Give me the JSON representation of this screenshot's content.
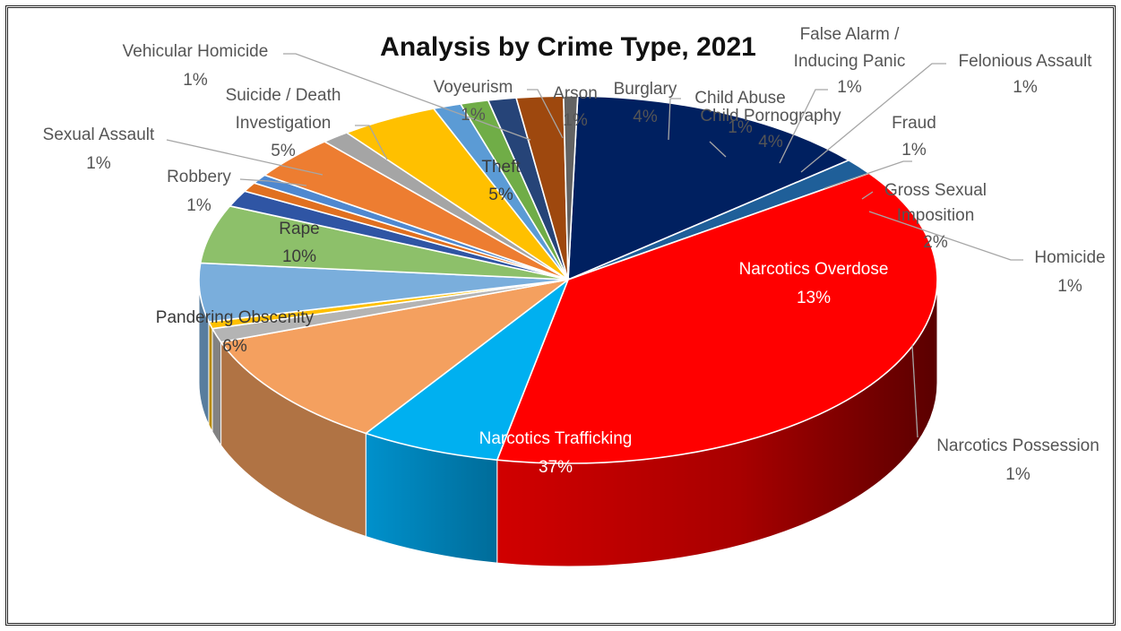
{
  "chart_data": {
    "type": "pie",
    "title": "Analysis by Crime Type, 2021",
    "three_d": true,
    "slices": [
      {
        "label": "Narcotics Overdose",
        "pct": "13%",
        "value": 13,
        "color": "#002060"
      },
      {
        "label": "Narcotics Possession",
        "pct": "1%",
        "value": 1.4,
        "color": "#1f5f99"
      },
      {
        "label": "Narcotics Trafficking",
        "pct": "37%",
        "value": 37,
        "color": "#ff0000"
      },
      {
        "label": "Pandering Obscenity",
        "pct": "6%",
        "value": 6,
        "color": "#00b0f0"
      },
      {
        "label": "Rape",
        "pct": "10%",
        "value": 10,
        "color": "#f4a05f"
      },
      {
        "label": "Robbery",
        "pct": "1%",
        "value": 1.2,
        "color": "#b4b4b4"
      },
      {
        "label": "Sexual Assault",
        "pct": "1%",
        "value": 0.6,
        "color": "#ffc000"
      },
      {
        "label": "Suicide / Death Investigation",
        "pct": "5%",
        "value": 5,
        "color": "#7aaedc"
      },
      {
        "label": "Theft",
        "pct": "5%",
        "value": 5,
        "color": "#8dc06a"
      },
      {
        "label": "Vehicular Homicide",
        "pct": "1%",
        "value": 1.4,
        "color": "#2f55a4"
      },
      {
        "label": "Voyeurism",
        "pct": "1%",
        "value": 0.8,
        "color": "#e07020"
      },
      {
        "label": "Arson",
        "pct": "1%",
        "value": 0.8,
        "color": "#4e88d0"
      },
      {
        "label": "Burglary",
        "pct": "4%",
        "value": 3.8,
        "color": "#ed7d31"
      },
      {
        "label": "Child Abuse",
        "pct": "1%",
        "value": 1.2,
        "color": "#a5a5a5"
      },
      {
        "label": "Child Pornography",
        "pct": "4%",
        "value": 4.2,
        "color": "#ffc000"
      },
      {
        "label": "False Alarm / Inducing Panic",
        "pct": "1%",
        "value": 1.2,
        "color": "#5b9bd5"
      },
      {
        "label": "Felonious Assault",
        "pct": "1%",
        "value": 1.2,
        "color": "#70ad47"
      },
      {
        "label": "Fraud",
        "pct": "1%",
        "value": 1.2,
        "color": "#264478"
      },
      {
        "label": "Gross Sexual Imposition",
        "pct": "2%",
        "value": 2.0,
        "color": "#9e480e"
      },
      {
        "label": "Homicide",
        "pct": "1%",
        "value": 0.6,
        "color": "#636363"
      }
    ]
  }
}
